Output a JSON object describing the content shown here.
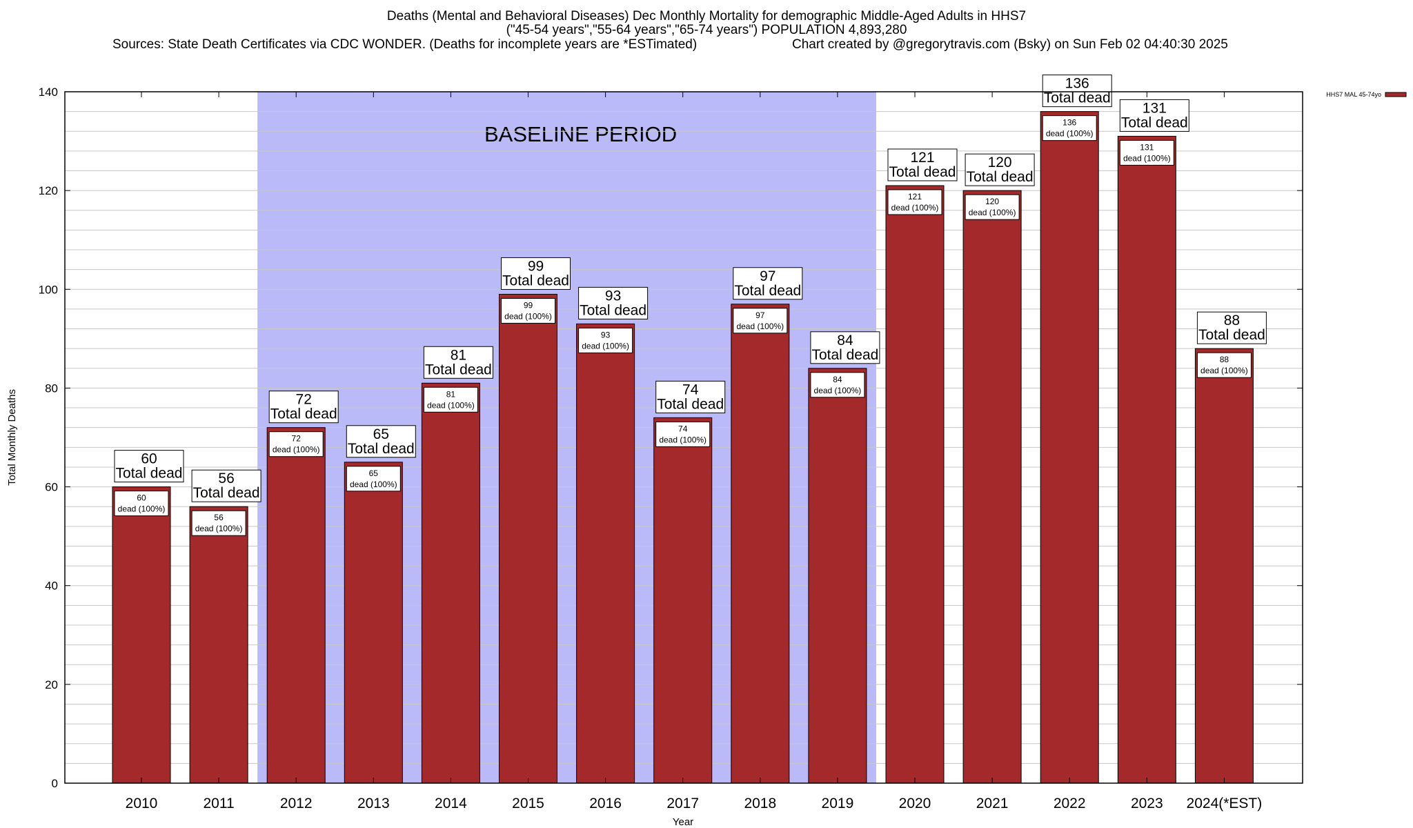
{
  "header": {
    "title_line1": "Deaths (Mental and Behavioral Diseases) Dec Monthly Mortality for demographic Middle-Aged Adults in HHS7",
    "title_line2": "(\"45-54 years\",\"55-64 years\",\"65-74 years\") POPULATION 4,893,280",
    "sources": "Sources: State Death Certificates via CDC WONDER. (Deaths for incomplete years are *ESTimated)",
    "credit": "Chart created by @gregorytravis.com (Bsky) on Sun Feb 02 04:40:30 2025"
  },
  "colors": {
    "bar": "#a4292a",
    "baseline_shade": "#babaf8",
    "grid": "#c8c8c8"
  },
  "chart_data": {
    "type": "bar",
    "categories": [
      "2010",
      "2011",
      "2012",
      "2013",
      "2014",
      "2015",
      "2016",
      "2017",
      "2018",
      "2019",
      "2020",
      "2021",
      "2022",
      "2023",
      "2024(*EST)"
    ],
    "series": [
      {
        "name": "HHS7 MAL 45-74yo",
        "values": [
          60,
          56,
          72,
          65,
          81,
          99,
          93,
          74,
          97,
          84,
          121,
          120,
          136,
          131,
          88
        ]
      }
    ],
    "xlabel": "Year",
    "ylabel": "Total Monthly Deaths",
    "ylim": [
      0,
      140
    ],
    "yticks": [
      0,
      20,
      40,
      60,
      80,
      100,
      120,
      140
    ],
    "y_minor_step": 4,
    "grid": true,
    "legend_position": "top-right",
    "annotation_total": "Total dead",
    "annotation_inner": "dead (100%)",
    "shaded_region": {
      "label": "BASELINE PERIOD",
      "from": "2012",
      "to": "2019"
    }
  }
}
